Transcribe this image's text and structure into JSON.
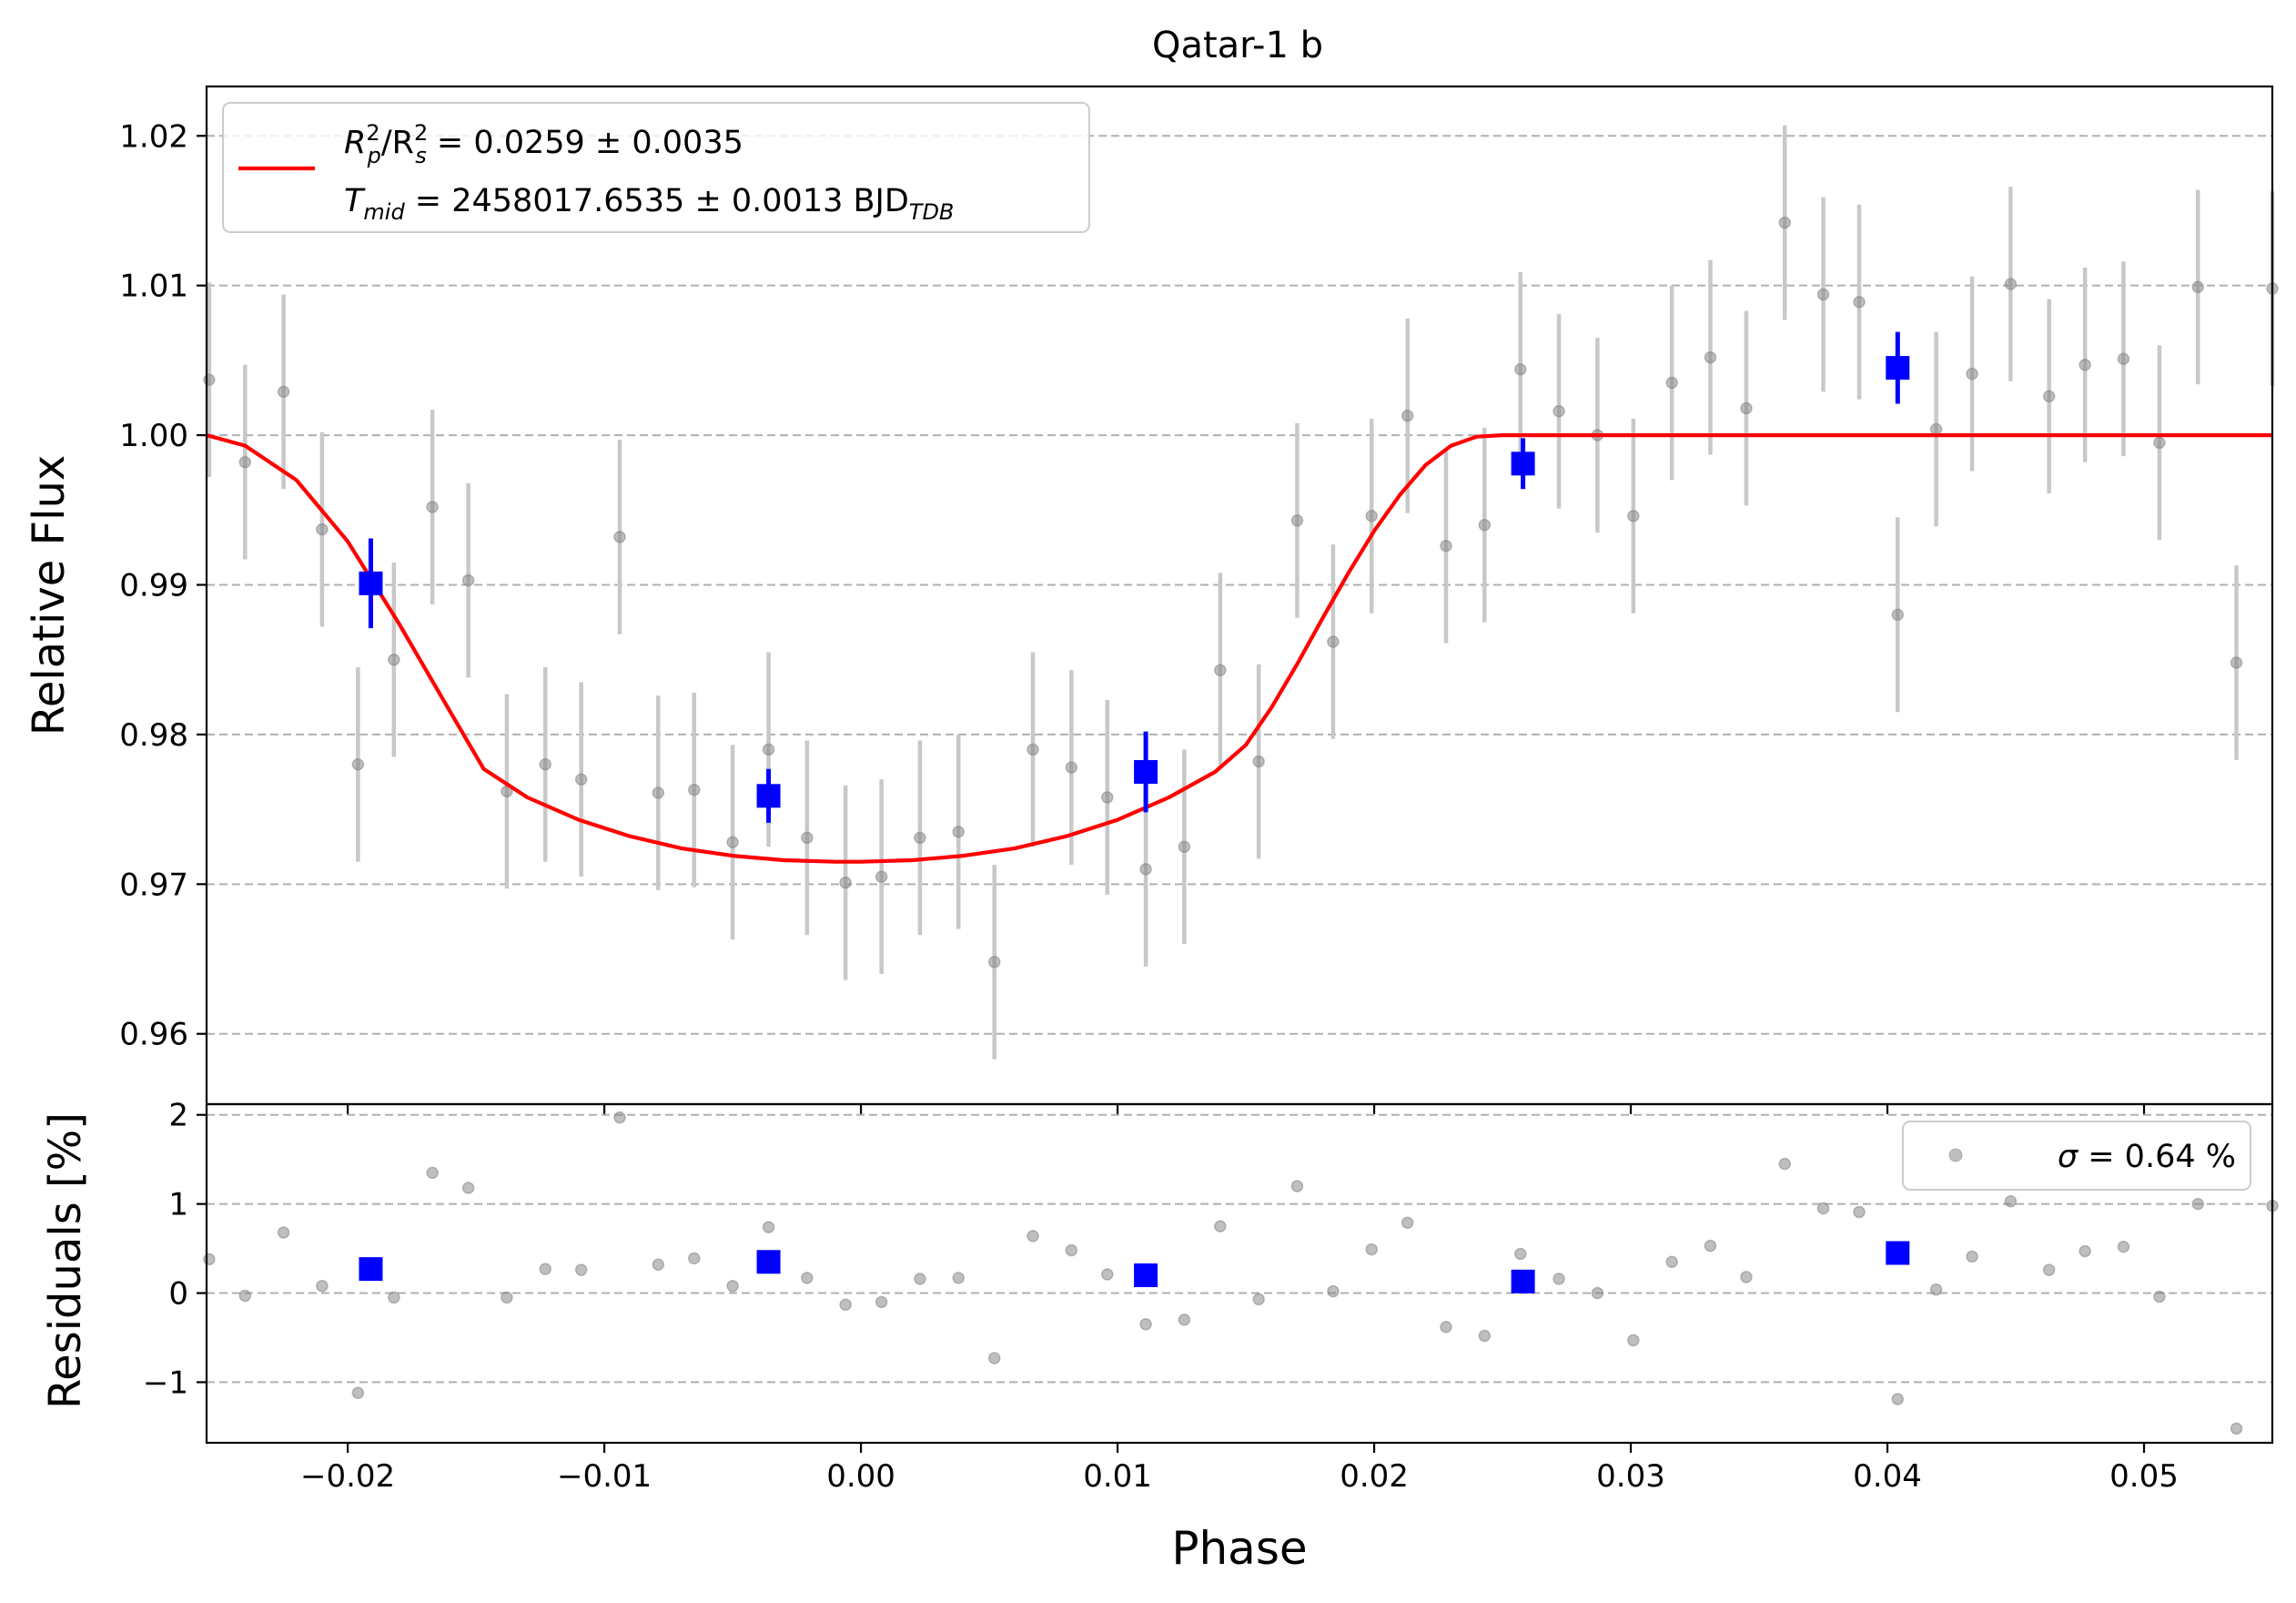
{
  "chart_data": [
    {
      "type": "scatter",
      "title": "Qatar-1 b",
      "xlabel": "Phase",
      "ylabel": "Relative Flux",
      "xlim": [
        -0.0255,
        0.055
      ],
      "ylim": [
        0.9553,
        1.0233
      ],
      "xticks": [
        -0.02,
        -0.01,
        0.0,
        0.01,
        0.02,
        0.03,
        0.04,
        0.05
      ],
      "xtick_labels": [
        "−0.02",
        "−0.01",
        "0.00",
        "0.01",
        "0.02",
        "0.03",
        "0.04",
        "0.05"
      ],
      "yticks": [
        0.96,
        0.97,
        0.98,
        0.99,
        1.0,
        1.01,
        1.02
      ],
      "ytick_labels": [
        "0.96",
        "0.97",
        "0.98",
        "0.99",
        "1.00",
        "1.01",
        "1.02"
      ],
      "grid": "horizontal dashed",
      "legend_position": "upper-left",
      "legend": {
        "line1_parts": [
          "R",
          "2",
          "p",
          "/R",
          "2",
          "s",
          " = 0.0259 ± 0.0035"
        ],
        "line2_parts": [
          "T",
          "mid",
          " = 2458017.6535 ± 0.0013 BJD",
          "TDB"
        ]
      },
      "colors": {
        "model": "#ff0000",
        "data": "#808080",
        "errorbar": "#c8c8c8",
        "binned": "#0000ff"
      },
      "data_points": {
        "x": [
          -0.0254,
          -0.024,
          -0.0225,
          -0.021,
          -0.0196,
          -0.0182,
          -0.0167,
          -0.0153,
          -0.0138,
          -0.0123,
          -0.0109,
          -0.0094,
          -0.0079,
          -0.0065,
          -0.005,
          -0.0036,
          -0.0021,
          -0.0006,
          0.0008,
          0.0023,
          0.0038,
          0.0052,
          0.0067,
          0.0082,
          0.0096,
          0.0111,
          0.0126,
          0.014,
          0.0155,
          0.017,
          0.0184,
          0.0199,
          0.0213,
          0.0228,
          0.0243,
          0.0257,
          0.0272,
          0.0287,
          0.0301,
          0.0316,
          0.0331,
          0.0345,
          0.036,
          0.0375,
          0.0389,
          0.0404,
          0.0419,
          0.0433,
          0.0448,
          0.0463,
          0.0477,
          0.0492,
          0.0506,
          0.0521,
          0.0536,
          0.055
        ],
        "y": [
          1.0037,
          0.9982,
          1.0029,
          0.9937,
          0.978,
          0.985,
          0.9952,
          0.9903,
          0.9762,
          0.978,
          0.977,
          0.9932,
          0.9761,
          0.9763,
          0.9728,
          0.979,
          0.9731,
          0.9701,
          0.9705,
          0.9731,
          0.9735,
          0.9648,
          0.979,
          0.9778,
          0.9758,
          0.971,
          0.9725,
          0.9843,
          0.9782,
          0.9943,
          0.9862,
          0.9946,
          1.0013,
          0.9926,
          0.994,
          1.0044,
          1.0016,
          1.0,
          0.9946,
          1.0035,
          1.0052,
          1.0018,
          1.0142,
          1.0094,
          1.0089,
          0.988,
          1.0004,
          1.0041,
          1.0101,
          1.0026,
          1.0047,
          1.0051,
          0.9995,
          1.0099,
          0.9848,
          1.0098
        ],
        "yerr": [
          0.0065,
          0.0065,
          0.0065,
          0.0065,
          0.0065,
          0.0065,
          0.0065,
          0.0065,
          0.0065,
          0.0065,
          0.0065,
          0.0065,
          0.0065,
          0.0065,
          0.0065,
          0.0065,
          0.0065,
          0.0065,
          0.0065,
          0.0065,
          0.0065,
          0.0065,
          0.0065,
          0.0065,
          0.0065,
          0.0065,
          0.0065,
          0.0065,
          0.0065,
          0.0065,
          0.0065,
          0.0065,
          0.0065,
          0.0065,
          0.0065,
          0.0065,
          0.0065,
          0.0065,
          0.0065,
          0.0065,
          0.0065,
          0.0065,
          0.0065,
          0.0065,
          0.0065,
          0.0065,
          0.0065,
          0.0065,
          0.0065,
          0.0065,
          0.0065,
          0.0065,
          0.0065,
          0.0065,
          0.0065,
          0.0065
        ]
      },
      "binned_points": {
        "x": [
          -0.0191,
          -0.0036,
          0.0111,
          0.0258,
          0.0404
        ],
        "y": [
          0.9901,
          0.9759,
          0.9775,
          0.9981,
          1.0045
        ],
        "yerr": [
          0.003,
          0.0018,
          0.0027,
          0.0017,
          0.0024
        ]
      },
      "model_curve": {
        "x": [
          -0.0255,
          -0.024,
          -0.022,
          -0.02,
          -0.018,
          -0.016,
          -0.0147,
          -0.013,
          -0.011,
          -0.009,
          -0.007,
          -0.005,
          -0.003,
          -0.001,
          0.0,
          0.002,
          0.004,
          0.006,
          0.008,
          0.01,
          0.012,
          0.0138,
          0.015,
          0.016,
          0.017,
          0.018,
          0.019,
          0.02,
          0.021,
          0.022,
          0.023,
          0.024,
          0.025,
          0.0258,
          0.03,
          0.035,
          0.04,
          0.045,
          0.05,
          0.055
        ],
        "y": [
          1.0,
          0.9993,
          0.997,
          0.9929,
          0.9874,
          0.9815,
          0.9777,
          0.9758,
          0.9743,
          0.9732,
          0.9724,
          0.9719,
          0.9716,
          0.9715,
          0.9715,
          0.9716,
          0.9719,
          0.9724,
          0.9732,
          0.9743,
          0.9758,
          0.9775,
          0.9793,
          0.9818,
          0.9847,
          0.9878,
          0.9908,
          0.9936,
          0.996,
          0.998,
          0.9993,
          0.9999,
          1.0,
          1.0,
          1.0,
          1.0,
          1.0,
          1.0,
          1.0,
          1.0
        ]
      }
    },
    {
      "type": "scatter",
      "xlabel": "Phase",
      "ylabel": "Residuals [%]",
      "xlim": [
        -0.0255,
        0.055
      ],
      "ylim": [
        -1.68,
        2.12
      ],
      "xticks": [
        -0.02,
        -0.01,
        0.0,
        0.01,
        0.02,
        0.03,
        0.04,
        0.05
      ],
      "xtick_labels": [
        "−0.02",
        "−0.01",
        "0.00",
        "0.01",
        "0.02",
        "0.03",
        "0.04",
        "0.05"
      ],
      "yticks": [
        -1,
        0,
        1,
        2
      ],
      "ytick_labels": [
        "−1",
        "0",
        "1",
        "2"
      ],
      "grid": "horizontal dashed",
      "legend_position": "upper-right",
      "legend": {
        "sigma_symbol": "σ",
        "sigma_text": " = 0.64 %"
      },
      "data_points": {
        "x": [
          -0.0254,
          -0.024,
          -0.0225,
          -0.021,
          -0.0196,
          -0.0182,
          -0.0167,
          -0.0153,
          -0.0138,
          -0.0123,
          -0.0109,
          -0.0094,
          -0.0079,
          -0.0065,
          -0.005,
          -0.0036,
          -0.0021,
          -0.0006,
          0.0008,
          0.0023,
          0.0038,
          0.0052,
          0.0067,
          0.0082,
          0.0096,
          0.0111,
          0.0126,
          0.014,
          0.0155,
          0.017,
          0.0184,
          0.0199,
          0.0213,
          0.0228,
          0.0243,
          0.0257,
          0.0272,
          0.0287,
          0.0301,
          0.0316,
          0.0331,
          0.0345,
          0.036,
          0.0375,
          0.0389,
          0.0404,
          0.0419,
          0.0433,
          0.0448,
          0.0463,
          0.0477,
          0.0492,
          0.0506,
          0.0521,
          0.0536,
          0.055
        ],
        "y": [
          0.38,
          -0.03,
          0.68,
          0.08,
          -1.12,
          -0.05,
          1.35,
          1.18,
          -0.05,
          0.27,
          0.26,
          1.97,
          0.32,
          0.39,
          0.08,
          0.74,
          0.17,
          -0.13,
          -0.1,
          0.16,
          0.17,
          -0.73,
          0.64,
          0.48,
          0.21,
          -0.35,
          -0.3,
          0.75,
          -0.07,
          1.2,
          0.02,
          0.49,
          0.79,
          -0.38,
          -0.48,
          0.44,
          0.16,
          0.0,
          -0.53,
          0.35,
          0.53,
          0.18,
          1.45,
          0.95,
          0.91,
          -1.19,
          0.04,
          0.41,
          1.03,
          0.26,
          0.47,
          0.52,
          -0.04,
          1.0,
          -1.52,
          0.98
        ]
      },
      "binned_points": {
        "x": [
          -0.0191,
          -0.0036,
          0.0111,
          0.0258,
          0.0404
        ],
        "y": [
          0.27,
          0.35,
          0.2,
          0.13,
          0.45
        ]
      }
    }
  ]
}
